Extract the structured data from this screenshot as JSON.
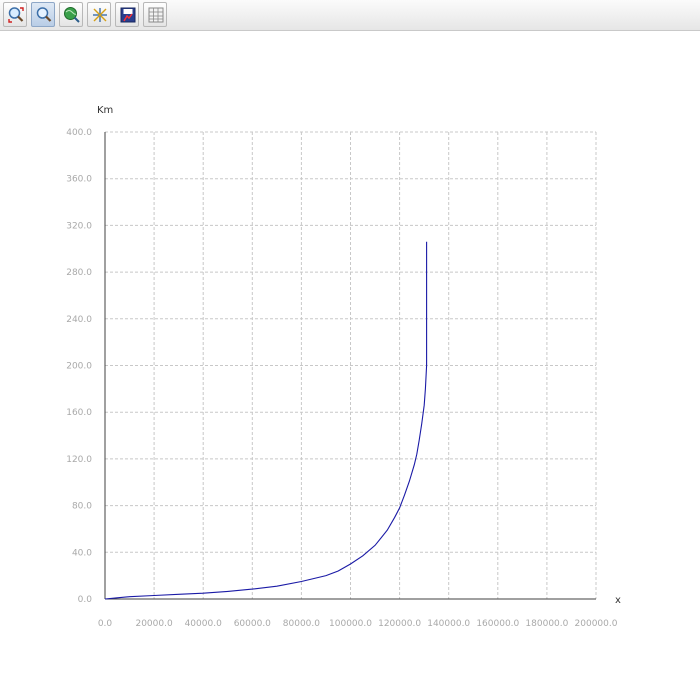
{
  "toolbar": {
    "buttons": [
      {
        "name": "zoom-fit-button",
        "icon": "zoom-fit-icon",
        "active": false
      },
      {
        "name": "zoom-button",
        "icon": "magnifier-icon",
        "active": true
      },
      {
        "name": "pan-button",
        "icon": "globe-icon",
        "active": false
      },
      {
        "name": "axis-settings-button",
        "icon": "axes-cross-icon",
        "active": false
      },
      {
        "name": "export-button",
        "icon": "save-chart-icon",
        "active": false
      },
      {
        "name": "data-table-button",
        "icon": "grid-table-icon",
        "active": false
      }
    ]
  },
  "chart_data": {
    "type": "line",
    "title": "",
    "xlabel": "x",
    "ylabel": "Km",
    "xlim": [
      0,
      200000
    ],
    "ylim": [
      0,
      400
    ],
    "x_ticks": [
      "0.0",
      "20000.0",
      "40000.0",
      "60000.0",
      "80000.0",
      "100000.0",
      "120000.0",
      "140000.0",
      "160000.0",
      "180000.0",
      "200000.0"
    ],
    "y_ticks": [
      "0.0",
      "40.0",
      "80.0",
      "120.0",
      "160.0",
      "200.0",
      "240.0",
      "280.0",
      "320.0",
      "360.0",
      "400.0"
    ],
    "grid": true,
    "legend": "none",
    "line_color": "#1a1aa6",
    "series": [
      {
        "x": [
          0,
          5000,
          10000,
          20000,
          30000,
          40000,
          50000,
          60000,
          70000,
          80000,
          90000,
          95000,
          100000,
          105000,
          110000,
          115000,
          118000,
          120000,
          122000,
          124000,
          126000,
          127000,
          128000,
          129000,
          130000,
          130500,
          131000,
          131000
        ],
        "y": [
          0,
          1,
          2,
          3,
          4,
          5,
          6.5,
          8.5,
          11,
          15,
          20,
          24,
          30,
          37,
          46,
          59,
          70,
          78,
          89,
          101,
          115,
          124,
          136,
          150,
          166,
          180,
          200,
          306
        ]
      }
    ]
  }
}
